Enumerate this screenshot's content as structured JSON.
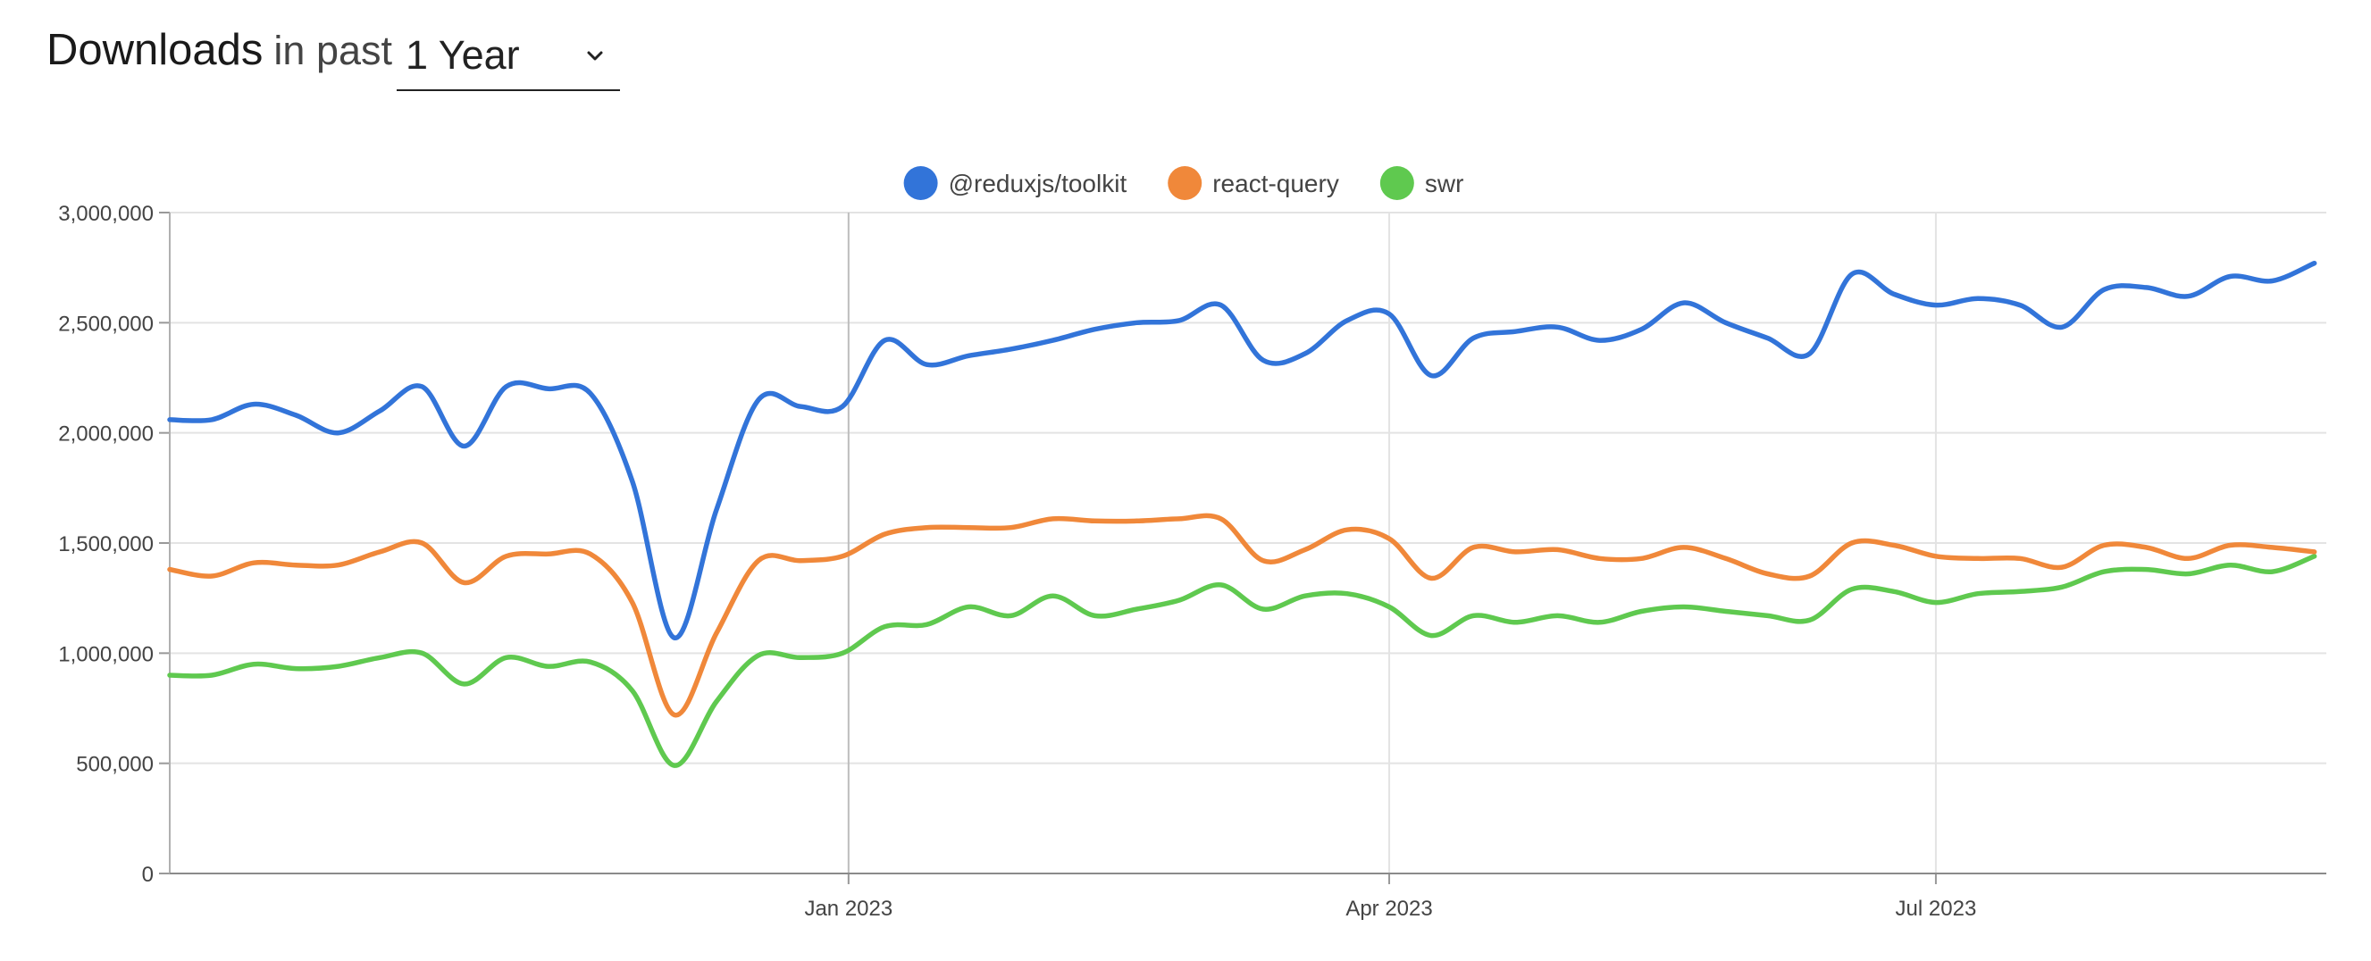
{
  "header": {
    "title_strong": "Downloads",
    "title_rest": "in past",
    "period_selected": "1 Year"
  },
  "icons": {
    "period_chevron": "chevron-down-icon"
  },
  "chart_data": {
    "type": "line",
    "title": "",
    "xlabel": "",
    "ylabel": "",
    "ylim": [
      0,
      3000000
    ],
    "yticks": [
      0,
      500000,
      1000000,
      1500000,
      2000000,
      2500000,
      3000000
    ],
    "ytick_labels": [
      "0",
      "500,000",
      "1,000,000",
      "1,500,000",
      "2,000,000",
      "2,500,000",
      "3,000,000"
    ],
    "xlim": [
      "2022-09-10",
      "2023-09-04"
    ],
    "xticks": [
      "2023-01-01",
      "2023-04-01",
      "2023-07-01"
    ],
    "xtick_labels": [
      "Jan 2023",
      "Apr 2023",
      "Jul 2023"
    ],
    "grid": true,
    "legend_position": "top-center",
    "x": [
      "2022-09-10",
      "2022-09-17",
      "2022-09-24",
      "2022-10-01",
      "2022-10-08",
      "2022-10-15",
      "2022-10-22",
      "2022-10-29",
      "2022-11-05",
      "2022-11-12",
      "2022-11-19",
      "2022-11-26",
      "2022-12-03",
      "2022-12-10",
      "2022-12-17",
      "2022-12-24",
      "2022-12-31",
      "2023-01-07",
      "2023-01-14",
      "2023-01-21",
      "2023-01-28",
      "2023-02-04",
      "2023-02-11",
      "2023-02-18",
      "2023-02-25",
      "2023-03-04",
      "2023-03-11",
      "2023-03-18",
      "2023-03-25",
      "2023-04-01",
      "2023-04-08",
      "2023-04-15",
      "2023-04-22",
      "2023-04-29",
      "2023-05-06",
      "2023-05-13",
      "2023-05-20",
      "2023-05-27",
      "2023-06-03",
      "2023-06-10",
      "2023-06-17",
      "2023-06-24",
      "2023-07-01",
      "2023-07-08",
      "2023-07-15",
      "2023-07-22",
      "2023-07-29",
      "2023-08-05",
      "2023-08-12",
      "2023-08-19",
      "2023-08-26",
      "2023-09-02"
    ],
    "series": [
      {
        "name": "@reduxjs/toolkit",
        "color": "#3274d9",
        "values": [
          2060000,
          2060000,
          2130000,
          2080000,
          2000000,
          2100000,
          2210000,
          1940000,
          2210000,
          2200000,
          2180000,
          1780000,
          1070000,
          1650000,
          2150000,
          2120000,
          2120000,
          2420000,
          2310000,
          2350000,
          2380000,
          2420000,
          2470000,
          2500000,
          2510000,
          2580000,
          2330000,
          2360000,
          2510000,
          2540000,
          2260000,
          2430000,
          2460000,
          2480000,
          2420000,
          2470000,
          2590000,
          2500000,
          2430000,
          2360000,
          2720000,
          2630000,
          2580000,
          2610000,
          2580000,
          2480000,
          2650000,
          2660000,
          2620000,
          2710000,
          2690000,
          2770000
        ]
      },
      {
        "name": "react-query",
        "color": "#f0883a",
        "values": [
          1380000,
          1350000,
          1410000,
          1400000,
          1400000,
          1460000,
          1500000,
          1320000,
          1440000,
          1450000,
          1450000,
          1230000,
          720000,
          1090000,
          1420000,
          1420000,
          1440000,
          1540000,
          1570000,
          1570000,
          1570000,
          1610000,
          1600000,
          1600000,
          1610000,
          1610000,
          1420000,
          1470000,
          1560000,
          1520000,
          1340000,
          1480000,
          1460000,
          1470000,
          1430000,
          1430000,
          1480000,
          1430000,
          1360000,
          1350000,
          1500000,
          1490000,
          1440000,
          1430000,
          1430000,
          1390000,
          1490000,
          1480000,
          1430000,
          1490000,
          1480000,
          1460000
        ]
      },
      {
        "name": "swr",
        "color": "#5fc94f",
        "values": [
          900000,
          900000,
          950000,
          930000,
          940000,
          980000,
          1000000,
          860000,
          980000,
          940000,
          960000,
          830000,
          490000,
          780000,
          990000,
          980000,
          1000000,
          1120000,
          1130000,
          1210000,
          1170000,
          1260000,
          1170000,
          1200000,
          1240000,
          1310000,
          1200000,
          1260000,
          1270000,
          1210000,
          1080000,
          1170000,
          1140000,
          1170000,
          1140000,
          1190000,
          1210000,
          1190000,
          1170000,
          1150000,
          1290000,
          1280000,
          1230000,
          1270000,
          1280000,
          1300000,
          1370000,
          1380000,
          1360000,
          1400000,
          1370000,
          1440000
        ]
      }
    ]
  }
}
